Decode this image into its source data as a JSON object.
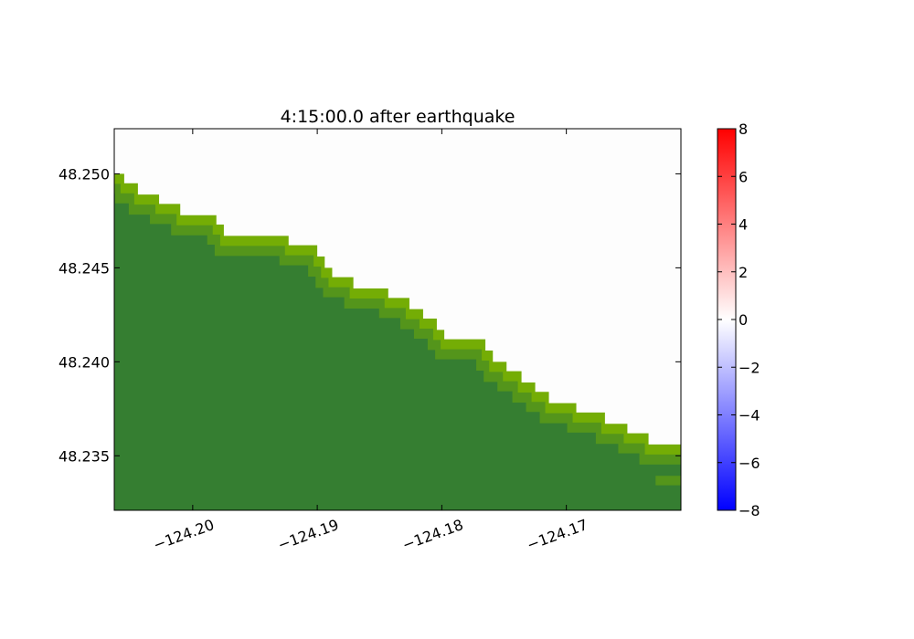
{
  "chart_data": {
    "type": "heatmap",
    "title": "4:15:00.0 after earthquake",
    "xlabel": "",
    "ylabel": "",
    "xlim": [
      -124.2063,
      -124.1608
    ],
    "ylim": [
      48.2321,
      48.2524
    ],
    "x_ticks": [
      {
        "value": -124.2,
        "label": "−124.20"
      },
      {
        "value": -124.19,
        "label": "−124.19"
      },
      {
        "value": -124.18,
        "label": "−124.18"
      },
      {
        "value": -124.17,
        "label": "−124.17"
      }
    ],
    "y_ticks": [
      {
        "value": 48.25,
        "label": "48.250"
      },
      {
        "value": 48.245,
        "label": "48.245"
      },
      {
        "value": 48.24,
        "label": "48.240"
      },
      {
        "value": 48.235,
        "label": "48.235"
      }
    ],
    "grid": false,
    "colors": {
      "land": "#357e31",
      "shore": "#74ad05",
      "shore_mid": "#54951b",
      "water": "#fdfdfd"
    },
    "coastline": [
      [
        -124.2063,
        48.25
      ],
      [
        -124.2055,
        48.25
      ],
      [
        -124.2055,
        48.2495
      ],
      [
        -124.2044,
        48.2495
      ],
      [
        -124.2044,
        48.2489
      ],
      [
        -124.2027,
        48.2489
      ],
      [
        -124.2027,
        48.2484
      ],
      [
        -124.201,
        48.2484
      ],
      [
        -124.201,
        48.2478
      ],
      [
        -124.1981,
        48.2478
      ],
      [
        -124.1981,
        48.2473
      ],
      [
        -124.1975,
        48.2473
      ],
      [
        -124.1975,
        48.2467
      ],
      [
        -124.1923,
        48.2467
      ],
      [
        -124.1923,
        48.2462
      ],
      [
        -124.19,
        48.2462
      ],
      [
        -124.19,
        48.2456
      ],
      [
        -124.1894,
        48.2456
      ],
      [
        -124.1894,
        48.245
      ],
      [
        -124.1888,
        48.245
      ],
      [
        -124.1888,
        48.2445
      ],
      [
        -124.1871,
        48.2445
      ],
      [
        -124.1871,
        48.2439
      ],
      [
        -124.1843,
        48.2439
      ],
      [
        -124.1843,
        48.2434
      ],
      [
        -124.1826,
        48.2434
      ],
      [
        -124.1826,
        48.2428
      ],
      [
        -124.1815,
        48.2428
      ],
      [
        -124.1815,
        48.2423
      ],
      [
        -124.1804,
        48.2423
      ],
      [
        -124.1804,
        48.2417
      ],
      [
        -124.1798,
        48.2417
      ],
      [
        -124.1798,
        48.2412
      ],
      [
        -124.1765,
        48.2412
      ],
      [
        -124.1765,
        48.2406
      ],
      [
        -124.1759,
        48.2406
      ],
      [
        -124.1759,
        48.24
      ],
      [
        -124.1748,
        48.24
      ],
      [
        -124.1748,
        48.2395
      ],
      [
        -124.1736,
        48.2395
      ],
      [
        -124.1736,
        48.2389
      ],
      [
        -124.1725,
        48.2389
      ],
      [
        -124.1725,
        48.2384
      ],
      [
        -124.1714,
        48.2384
      ],
      [
        -124.1714,
        48.2378
      ],
      [
        -124.1692,
        48.2378
      ],
      [
        -124.1692,
        48.2373
      ],
      [
        -124.1669,
        48.2373
      ],
      [
        -124.1669,
        48.2367
      ],
      [
        -124.1651,
        48.2367
      ],
      [
        -124.1651,
        48.2362
      ],
      [
        -124.1634,
        48.2362
      ],
      [
        -124.1634,
        48.2356
      ],
      [
        -124.1601,
        48.2356
      ],
      [
        -124.1601,
        48.235
      ],
      [
        -124.1621,
        48.235
      ],
      [
        -124.1621,
        48.2345
      ],
      [
        -124.1601,
        48.2345
      ]
    ]
  },
  "colorbar": {
    "min": -8,
    "max": 8,
    "ticks": [
      {
        "value": 8,
        "label": "8"
      },
      {
        "value": 6,
        "label": "6"
      },
      {
        "value": 4,
        "label": "4"
      },
      {
        "value": 2,
        "label": "2"
      },
      {
        "value": 0,
        "label": "0"
      },
      {
        "value": -2,
        "label": "−2"
      },
      {
        "value": -4,
        "label": "−4"
      },
      {
        "value": -6,
        "label": "−6"
      },
      {
        "value": -8,
        "label": "−8"
      }
    ],
    "colors": {
      "high": "#ff0000",
      "mid": "#ffffff",
      "low": "#0000ff"
    }
  }
}
